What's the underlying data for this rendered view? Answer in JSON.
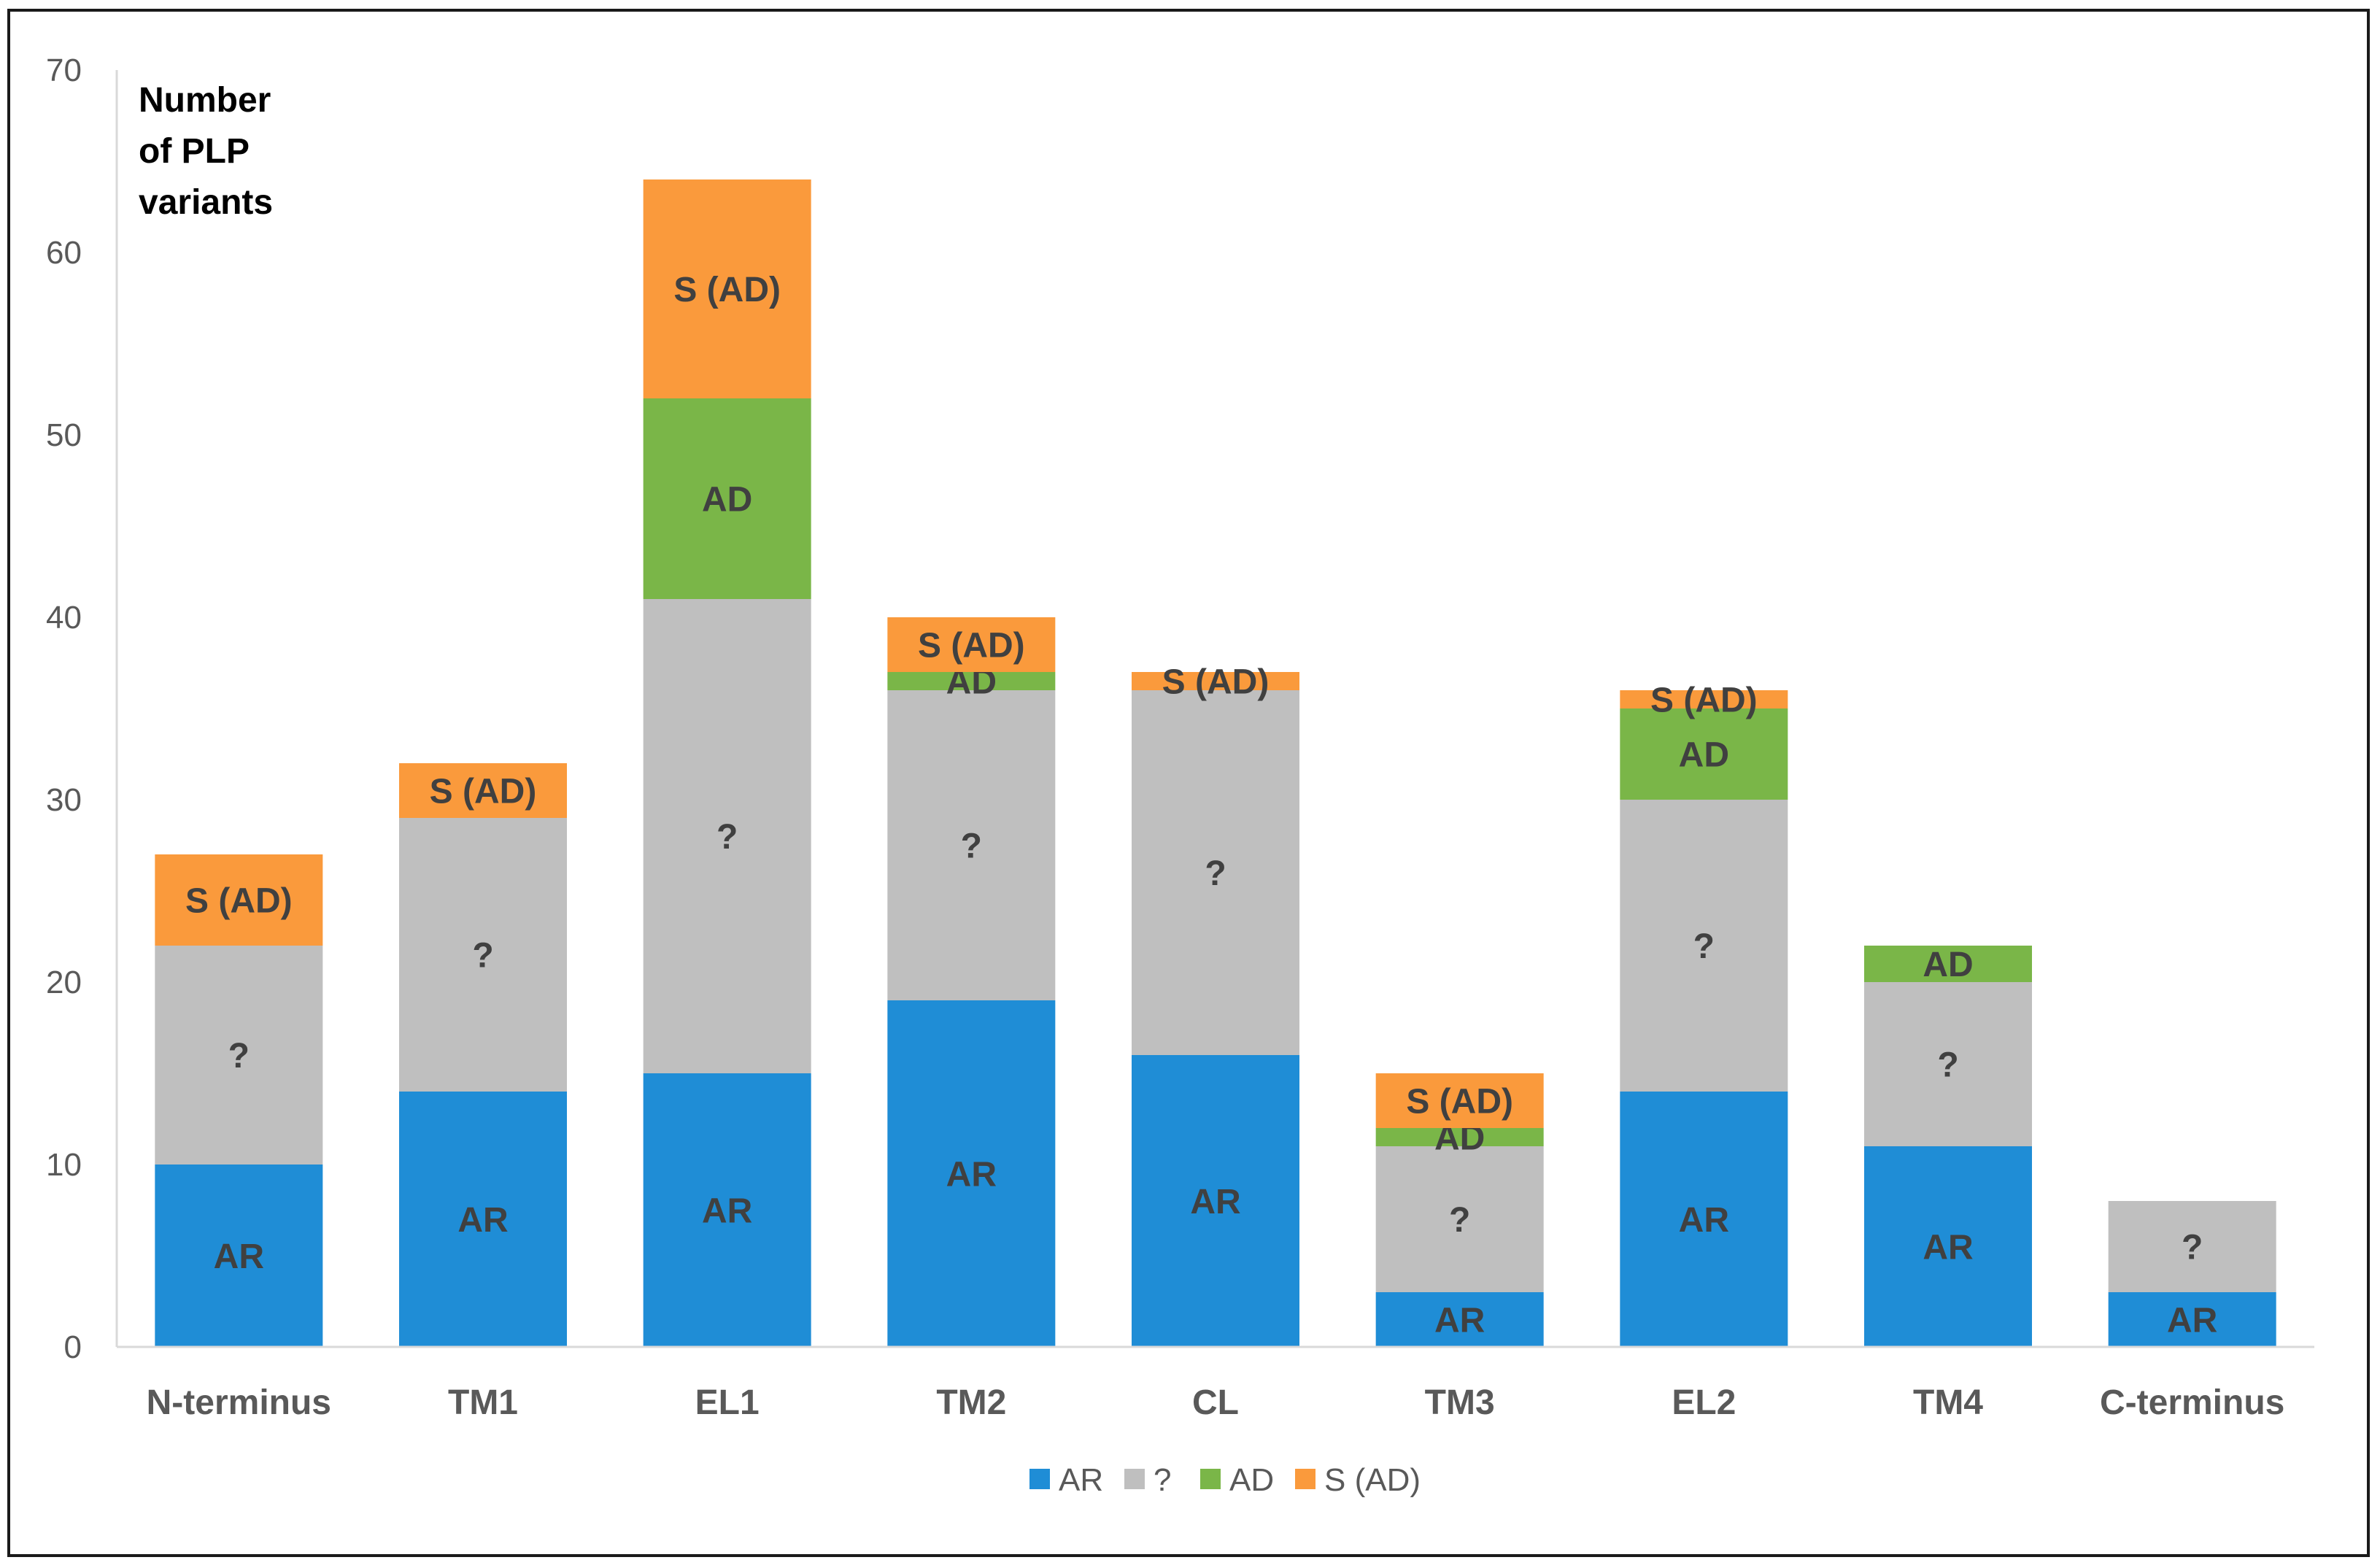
{
  "chart_data": {
    "type": "bar",
    "stacked": true,
    "title": "",
    "ylabel_lines": [
      "Number",
      "of PLP",
      "variants"
    ],
    "xlabel": "",
    "ylim": [
      0,
      70
    ],
    "yticks": [
      0,
      10,
      20,
      30,
      40,
      50,
      60,
      70
    ],
    "grid": false,
    "legend_position": "bottom",
    "categories": [
      "N-terminus",
      "TM1",
      "EL1",
      "TM2",
      "CL",
      "TM3",
      "EL2",
      "TM4",
      "C-terminus"
    ],
    "series": [
      {
        "name": "AR",
        "color": "#1f8dd6",
        "values": [
          10,
          14,
          15,
          19,
          16,
          3,
          14,
          11,
          3
        ]
      },
      {
        "name": "?",
        "color": "#bfbfbf",
        "values": [
          12,
          15,
          26,
          17,
          20,
          8,
          16,
          9,
          5
        ]
      },
      {
        "name": "AD",
        "color": "#7ab648",
        "values": [
          0,
          0,
          11,
          1,
          0,
          1,
          5,
          2,
          0
        ]
      },
      {
        "name": "S (AD)",
        "color": "#fa9a3c",
        "values": [
          5,
          3,
          12,
          3,
          1,
          3,
          1,
          0,
          0
        ]
      }
    ]
  }
}
